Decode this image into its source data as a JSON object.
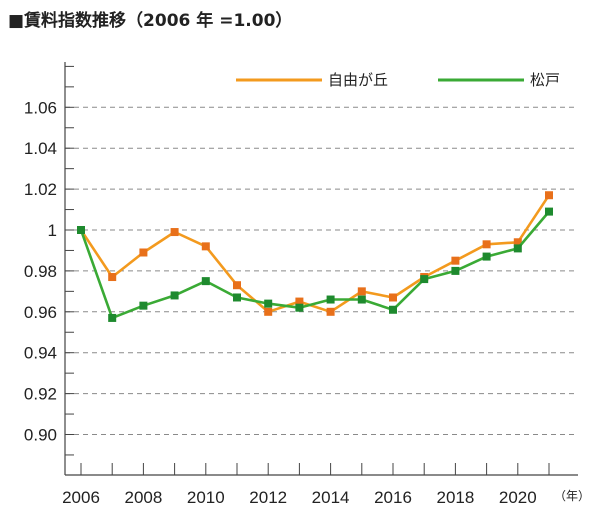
{
  "title": "■賃料指数推移（2006 年 =1.00）",
  "chart_data": {
    "type": "line",
    "title": "■賃料指数推移（2006 年 =1.00）",
    "xlabel": "",
    "ylabel": "",
    "x_unit": "（年）",
    "x": [
      2006,
      2007,
      2008,
      2009,
      2010,
      2011,
      2012,
      2013,
      2014,
      2015,
      2016,
      2017,
      2018,
      2019,
      2020,
      2021
    ],
    "x_tick_labels": [
      "2006",
      "2008",
      "2010",
      "2012",
      "2014",
      "2016",
      "2018",
      "2020"
    ],
    "x_tick_values": [
      2006,
      2008,
      2010,
      2012,
      2014,
      2016,
      2018,
      2020
    ],
    "y_tick_labels": [
      "0.90",
      "0.92",
      "0.94",
      "0.96",
      "0.98",
      "1",
      "1.02",
      "1.04",
      "1.06"
    ],
    "y_tick_values": [
      0.9,
      0.92,
      0.94,
      0.96,
      0.98,
      1.0,
      1.02,
      1.04,
      1.06
    ],
    "xlim": [
      2006,
      2022
    ],
    "ylim": [
      0.88,
      1.08
    ],
    "grid": "horizontal dashed",
    "legend_position": "top-right",
    "series": [
      {
        "name": "自由が丘",
        "color": "#f39a1e",
        "marker_color": "#e8701a",
        "values": [
          1.0,
          0.977,
          0.989,
          0.999,
          0.992,
          0.973,
          0.96,
          0.965,
          0.96,
          0.97,
          0.967,
          0.977,
          0.985,
          0.993,
          0.994,
          1.017
        ]
      },
      {
        "name": "松戸",
        "color": "#3aaa35",
        "marker_color": "#1e8a2e",
        "values": [
          1.0,
          0.957,
          0.963,
          0.968,
          0.975,
          0.967,
          0.964,
          0.962,
          0.966,
          0.966,
          0.961,
          0.976,
          0.98,
          0.987,
          0.991,
          1.009
        ]
      }
    ]
  }
}
